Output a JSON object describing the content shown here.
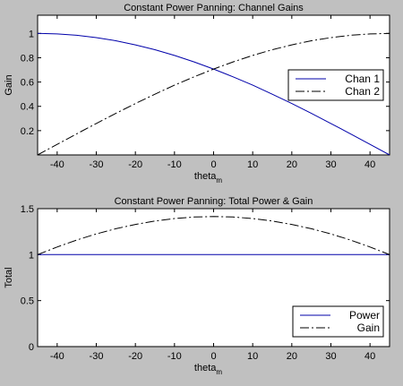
{
  "chart_data": [
    {
      "type": "line",
      "title": "Constant Power Panning: Channel Gains",
      "xlabel": "theta",
      "xlabel_sub": "m",
      "ylabel": "Gain",
      "xlim": [
        -45,
        45
      ],
      "ylim": [
        0,
        1.15
      ],
      "xticks": [
        -40,
        -30,
        -20,
        -10,
        0,
        10,
        20,
        30,
        40
      ],
      "yticks": [
        0.2,
        0.4,
        0.6,
        0.8,
        1
      ],
      "x": [
        -45,
        -40,
        -35,
        -30,
        -25,
        -20,
        -15,
        -10,
        -5,
        0,
        5,
        10,
        15,
        20,
        25,
        30,
        35,
        40,
        45
      ],
      "series": [
        {
          "name": "Chan 1",
          "color": "#0000aa",
          "style": "solid",
          "values": [
            1.0,
            0.996,
            0.985,
            0.966,
            0.94,
            0.906,
            0.866,
            0.819,
            0.766,
            0.707,
            0.643,
            0.574,
            0.5,
            0.423,
            0.342,
            0.259,
            0.174,
            0.087,
            0.0
          ]
        },
        {
          "name": "Chan 2",
          "color": "#000000",
          "style": "dashdot",
          "values": [
            0.0,
            0.087,
            0.174,
            0.259,
            0.342,
            0.423,
            0.5,
            0.574,
            0.643,
            0.707,
            0.766,
            0.819,
            0.866,
            0.906,
            0.94,
            0.966,
            0.985,
            0.996,
            1.0
          ]
        }
      ],
      "legend": "right"
    },
    {
      "type": "line",
      "title": "Constant Power Panning: Total Power & Gain",
      "xlabel": "theta",
      "xlabel_sub": "m",
      "ylabel": "Total",
      "xlim": [
        -45,
        45
      ],
      "ylim": [
        0,
        1.5
      ],
      "xticks": [
        -40,
        -30,
        -20,
        -10,
        0,
        10,
        20,
        30,
        40
      ],
      "yticks": [
        0,
        0.5,
        1,
        1.5
      ],
      "x": [
        -45,
        -40,
        -35,
        -30,
        -25,
        -20,
        -15,
        -10,
        -5,
        0,
        5,
        10,
        15,
        20,
        25,
        30,
        35,
        40,
        45
      ],
      "series": [
        {
          "name": "Power",
          "color": "#0000aa",
          "style": "solid",
          "values": [
            1,
            1,
            1,
            1,
            1,
            1,
            1,
            1,
            1,
            1,
            1,
            1,
            1,
            1,
            1,
            1,
            1,
            1,
            1
          ]
        },
        {
          "name": "Gain",
          "color": "#000000",
          "style": "dashdot",
          "values": [
            1.0,
            1.083,
            1.159,
            1.225,
            1.282,
            1.329,
            1.366,
            1.393,
            1.409,
            1.414,
            1.409,
            1.393,
            1.366,
            1.329,
            1.282,
            1.225,
            1.159,
            1.083,
            1.0
          ]
        }
      ],
      "legend": "bottom-right"
    }
  ]
}
